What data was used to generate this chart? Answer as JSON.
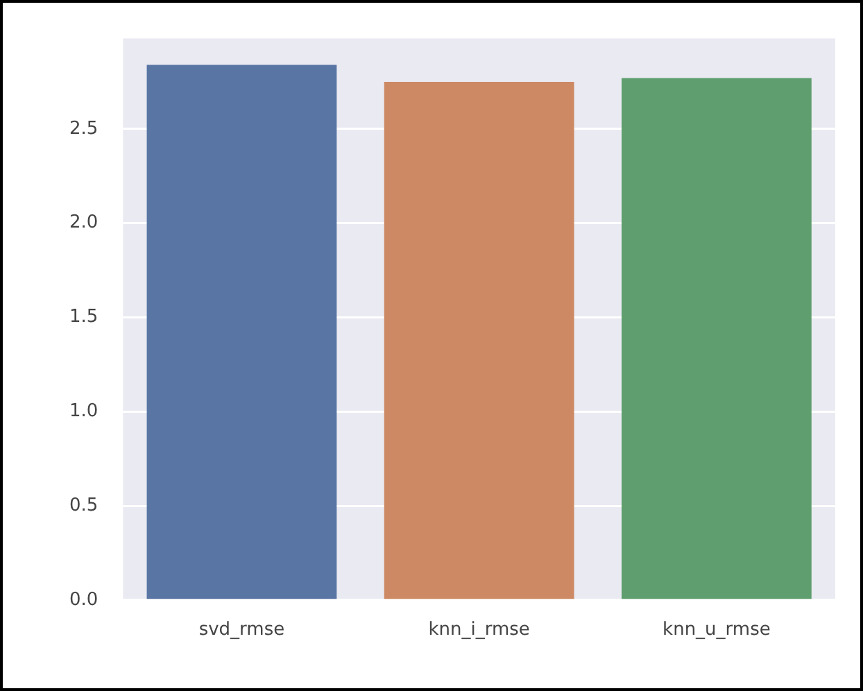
{
  "chart_data": {
    "type": "bar",
    "categories": [
      "svd_rmse",
      "knn_i_rmse",
      "knn_u_rmse"
    ],
    "values": [
      2.84,
      2.75,
      2.77
    ],
    "colors": [
      "#5875a4",
      "#cc8963",
      "#5f9e6e"
    ],
    "ylim": [
      0,
      2.98
    ],
    "yticks": [
      {
        "value": 0,
        "label": "0.0"
      },
      0.5,
      {
        "value": 1,
        "label": "1.0"
      },
      1.5,
      {
        "value": 2,
        "label": "2.0"
      },
      2.5
    ],
    "grid": "y"
  }
}
